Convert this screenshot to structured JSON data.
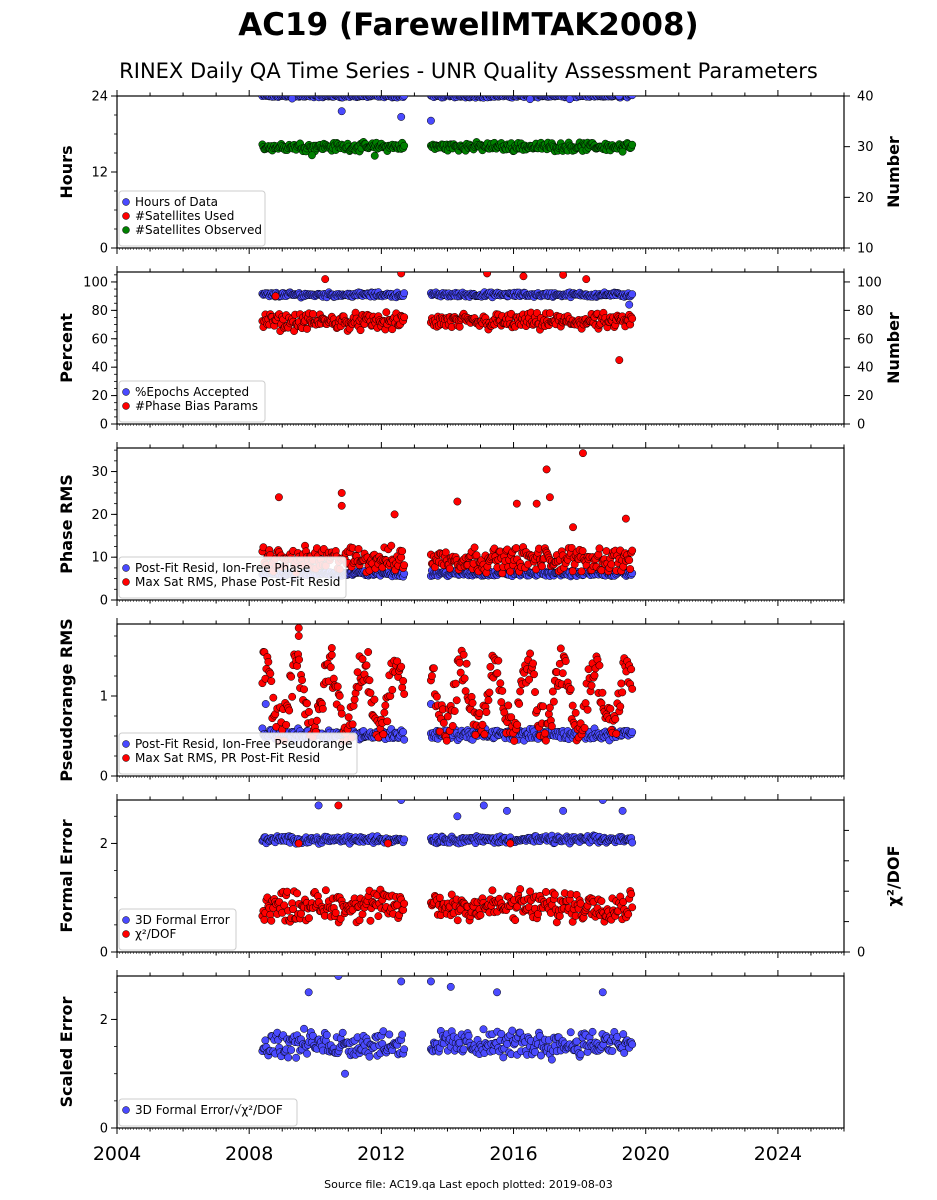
{
  "title": "AC19 (FarewellMTAK2008)",
  "subtitle": "RINEX Daily QA Time Series - UNR Quality Assessment Parameters",
  "footer": "Source file: AC19.qa Last epoch plotted: 2019-08-03",
  "colors": {
    "blue": "#4a4aff",
    "red": "#ff0000",
    "green": "#008000"
  },
  "chart_data": [
    {
      "type": "scatter",
      "ylabel": "Hours",
      "ylabel_right": "Number",
      "xlim": [
        2004,
        2026
      ],
      "ylim": [
        0,
        24
      ],
      "yticks": [
        0,
        12,
        24
      ],
      "ylim_right": [
        10,
        40
      ],
      "yticks_right": [
        10,
        20,
        30,
        40
      ],
      "legend_position": "lower-left",
      "series": [
        {
          "name": "Hours of Data",
          "color": "#4a4aff",
          "axis": "left",
          "mode": "band",
          "segments": [
            [
              2008.4,
              2012.7
            ],
            [
              2013.5,
              2019.6
            ]
          ],
          "center": 24,
          "spread": 0.3,
          "outliers": [
            [
              2009.3,
              23.6
            ],
            [
              2010.8,
              21.6
            ],
            [
              2012.6,
              20.7
            ],
            [
              2013.5,
              20.1
            ],
            [
              2016.5,
              23.5
            ],
            [
              2017.7,
              23.5
            ],
            [
              2019.2,
              24.0
            ]
          ]
        },
        {
          "name": "#Satellites Used",
          "color": "#ff0000",
          "axis": "right",
          "mode": "hidden",
          "segments": [],
          "center": 0,
          "spread": 0,
          "outliers": []
        },
        {
          "name": "#Satellites Observed",
          "color": "#008000",
          "axis": "right",
          "mode": "band",
          "segments": [
            [
              2008.4,
              2012.7
            ],
            [
              2013.5,
              2019.6
            ]
          ],
          "center": 30,
          "spread": 1.0,
          "outliers": [
            [
              2009.9,
              28.3
            ],
            [
              2011.8,
              28.2
            ],
            [
              2019.3,
              29.0
            ]
          ]
        }
      ]
    },
    {
      "type": "scatter",
      "ylabel": "Percent",
      "ylabel_right": "Number",
      "xlim": [
        2004,
        2026
      ],
      "ylim": [
        0,
        107
      ],
      "yticks": [
        0,
        20,
        40,
        60,
        80,
        100
      ],
      "ylim_right": [
        0,
        107
      ],
      "yticks_right": [
        0,
        20,
        40,
        60,
        80,
        100
      ],
      "legend_position": "lower-left",
      "series": [
        {
          "name": "%Epochs Accepted",
          "color": "#4a4aff",
          "axis": "left",
          "mode": "band",
          "segments": [
            [
              2008.4,
              2012.7
            ],
            [
              2013.5,
              2019.6
            ]
          ],
          "center": 91,
          "spread": 2.0,
          "outliers": [
            [
              2019.5,
              84
            ]
          ]
        },
        {
          "name": "#Phase Bias Params",
          "color": "#ff0000",
          "axis": "right",
          "mode": "band",
          "segments": [
            [
              2008.4,
              2012.7
            ],
            [
              2013.5,
              2019.6
            ]
          ],
          "center": 72,
          "spread": 7.0,
          "outliers": [
            [
              2010.3,
              102
            ],
            [
              2012.6,
              106
            ],
            [
              2015.2,
              106
            ],
            [
              2016.3,
              104
            ],
            [
              2017.5,
              105
            ],
            [
              2018.2,
              102
            ],
            [
              2019.2,
              45
            ],
            [
              2008.8,
              90
            ]
          ]
        }
      ]
    },
    {
      "type": "scatter",
      "ylabel": "Phase RMS",
      "xlim": [
        2004,
        2026
      ],
      "ylim": [
        0,
        35.5
      ],
      "yticks": [
        0,
        10,
        20,
        30
      ],
      "legend_position": "lower-left",
      "series": [
        {
          "name": "Post-Fit Resid, Ion-Free Phase",
          "color": "#4a4aff",
          "axis": "left",
          "mode": "band",
          "segments": [
            [
              2008.4,
              2012.7
            ],
            [
              2013.5,
              2019.6
            ]
          ],
          "center": 6.2,
          "spread": 0.8,
          "outliers": []
        },
        {
          "name": "Max Sat RMS, Phase Post-Fit Resid",
          "color": "#ff0000",
          "axis": "left",
          "mode": "band",
          "segments": [
            [
              2008.4,
              2012.7
            ],
            [
              2013.5,
              2019.6
            ]
          ],
          "center": 9.5,
          "spread": 3.5,
          "outliers": [
            [
              2008.9,
              24
            ],
            [
              2010.8,
              25
            ],
            [
              2010.8,
              22
            ],
            [
              2014.3,
              23
            ],
            [
              2016.1,
              22.5
            ],
            [
              2016.7,
              22.5
            ],
            [
              2017.0,
              30.5
            ],
            [
              2017.1,
              24
            ],
            [
              2018.1,
              34.3
            ],
            [
              2017.8,
              17
            ],
            [
              2012.4,
              20
            ],
            [
              2019.4,
              19
            ]
          ]
        }
      ]
    },
    {
      "type": "scatter",
      "ylabel": "Pseudorange RMS",
      "xlim": [
        2004,
        2026
      ],
      "ylim": [
        0,
        1.9
      ],
      "yticks": [
        0,
        1
      ],
      "legend_position": "lower-left",
      "series": [
        {
          "name": "Post-Fit Resid, Ion-Free Pseudorange",
          "color": "#4a4aff",
          "axis": "left",
          "mode": "band",
          "segments": [
            [
              2008.4,
              2012.7
            ],
            [
              2013.5,
              2019.6
            ]
          ],
          "center": 0.52,
          "spread": 0.08,
          "outliers": [
            [
              2008.5,
              0.9
            ],
            [
              2013.5,
              0.9
            ]
          ]
        },
        {
          "name": "Max Sat RMS, PR Post-Fit Resid",
          "color": "#ff0000",
          "axis": "left",
          "mode": "seasonal",
          "segments": [
            [
              2008.4,
              2012.7
            ],
            [
              2013.5,
              2019.6
            ]
          ],
          "center": 0.95,
          "spread": 0.42,
          "outliers": [
            [
              2009.5,
              1.85
            ],
            [
              2010.5,
              1.6
            ],
            [
              2011.6,
              1.55
            ],
            [
              2009.5,
              1.75
            ]
          ]
        }
      ]
    },
    {
      "type": "scatter",
      "ylabel": "Formal Error",
      "ylabel_right": "χ²/DOF",
      "xlim": [
        2004,
        2026
      ],
      "ylim": [
        0,
        2.8
      ],
      "yticks": [
        0,
        2
      ],
      "yticks_right": [
        0
      ],
      "legend_position": "lower-left",
      "series": [
        {
          "name": "3D Formal Error",
          "color": "#4a4aff",
          "axis": "left",
          "mode": "band",
          "segments": [
            [
              2008.4,
              2012.7
            ],
            [
              2013.5,
              2019.6
            ]
          ],
          "center": 2.07,
          "spread": 0.08,
          "outliers": [
            [
              2010.1,
              2.7
            ],
            [
              2012.6,
              2.8
            ],
            [
              2014.3,
              2.5
            ],
            [
              2015.1,
              2.7
            ],
            [
              2015.8,
              2.6
            ],
            [
              2017.5,
              2.6
            ],
            [
              2018.7,
              2.8
            ],
            [
              2019.3,
              2.6
            ]
          ]
        },
        {
          "name": "χ²/DOF",
          "color": "#ff0000",
          "axis": "left",
          "mode": "band",
          "segments": [
            [
              2008.4,
              2012.7
            ],
            [
              2013.5,
              2019.6
            ]
          ],
          "center": 0.85,
          "spread": 0.35,
          "outliers": [
            [
              2010.7,
              2.7
            ],
            [
              2012.2,
              2.0
            ],
            [
              2009.5,
              2.0
            ],
            [
              2015.9,
              2.0
            ]
          ]
        }
      ]
    },
    {
      "type": "scatter",
      "ylabel": "Scaled Error",
      "xlim": [
        2004,
        2026
      ],
      "ylim": [
        0,
        2.8
      ],
      "yticks": [
        0,
        2
      ],
      "legend_position": "lower-left",
      "series": [
        {
          "name": "3D Formal Error/√χ²/DOF",
          "color": "#4a4aff",
          "axis": "left",
          "mode": "band",
          "segments": [
            [
              2008.4,
              2012.7
            ],
            [
              2013.5,
              2019.6
            ]
          ],
          "center": 1.55,
          "spread": 0.3,
          "outliers": [
            [
              2010.7,
              2.8
            ],
            [
              2012.6,
              2.7
            ],
            [
              2013.5,
              2.7
            ],
            [
              2014.1,
              2.6
            ],
            [
              2015.5,
              2.5
            ],
            [
              2018.7,
              2.5
            ],
            [
              2010.9,
              1.0
            ],
            [
              2009.8,
              2.5
            ]
          ]
        }
      ]
    }
  ],
  "xticks": [
    2004,
    2008,
    2012,
    2016,
    2020,
    2024
  ]
}
